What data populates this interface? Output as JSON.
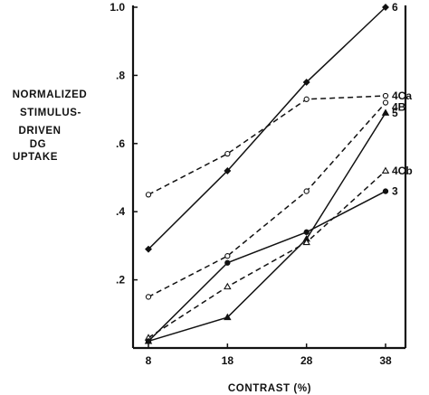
{
  "chart_data": {
    "type": "line",
    "ylabel_lines": [
      "NORMALIZED",
      "STIMULUS-",
      "DRIVEN",
      "DG",
      "UPTAKE"
    ],
    "xlabel": "CONTRAST   (%)",
    "x": [
      8,
      18,
      28,
      38
    ],
    "xticks": [
      "8",
      "18",
      "28",
      "38"
    ],
    "yticks": [
      {
        "value": 0.2,
        "label": ".2"
      },
      {
        "value": 0.4,
        "label": ".4"
      },
      {
        "value": 0.6,
        "label": ".6"
      },
      {
        "value": 0.8,
        "label": ".8"
      },
      {
        "value": 1.0,
        "label": "1.0"
      }
    ],
    "ylim": [
      0,
      1.0
    ],
    "grid": false,
    "series": [
      {
        "name": "6",
        "values": [
          0.29,
          0.52,
          0.78,
          1.0
        ],
        "line": "solid",
        "marker": "diamond-filled"
      },
      {
        "name": "4Ca",
        "values": [
          0.45,
          0.57,
          0.73,
          0.74
        ],
        "line": "dashed",
        "marker": "circle-open"
      },
      {
        "name": "4B",
        "values": [
          0.15,
          0.27,
          0.46,
          0.72
        ],
        "line": "dashed",
        "marker": "circle-open"
      },
      {
        "name": "5",
        "values": [
          0.02,
          0.09,
          0.32,
          0.69
        ],
        "line": "solid",
        "marker": "triangle-filled"
      },
      {
        "name": "4Cb",
        "values": [
          0.03,
          0.18,
          0.31,
          0.52
        ],
        "line": "dashed",
        "marker": "triangle-open"
      },
      {
        "name": "3",
        "values": [
          0.02,
          0.25,
          0.34,
          0.46
        ],
        "line": "solid",
        "marker": "circle-filled"
      }
    ]
  }
}
